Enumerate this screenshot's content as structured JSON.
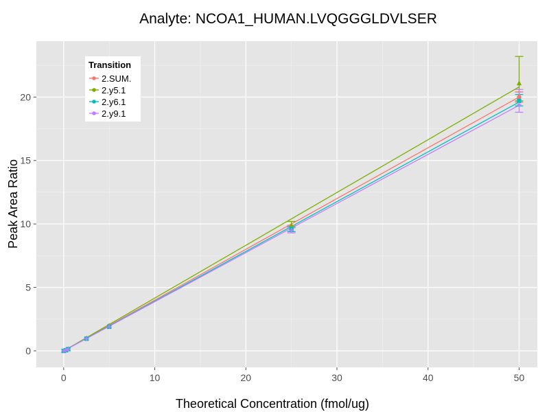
{
  "chart_data": {
    "type": "line",
    "title": "Analyte: NCOA1_HUMAN.LVQGGGLDVLSER",
    "xlabel": "Theoretical Concentration (fmol/ug)",
    "ylabel": "Peak Area Ratio",
    "xlim": [
      -3,
      52
    ],
    "ylim": [
      -1.3,
      24.4
    ],
    "xticks": [
      0,
      10,
      20,
      30,
      40,
      50
    ],
    "yticks": [
      0,
      5,
      10,
      15,
      20
    ],
    "grid": true,
    "legend": {
      "title": "Transition",
      "position": "top-left-inside"
    },
    "x": [
      0,
      0.25,
      0.5,
      2.5,
      5,
      25,
      50
    ],
    "series": [
      {
        "name": "2.SUM.",
        "color": "#F8766D",
        "marker": "circle",
        "values": [
          0.0,
          0.06,
          0.15,
          0.98,
          1.98,
          9.65,
          20.0
        ],
        "err_low": [
          0.0,
          0.0,
          0.0,
          0.0,
          0.0,
          9.4,
          19.6
        ],
        "err_high": [
          0.0,
          0.0,
          0.0,
          0.0,
          0.0,
          9.9,
          20.4
        ],
        "fit": [
          0.0,
          20.0
        ]
      },
      {
        "name": "2.y5.1",
        "color": "#7CAE00",
        "marker": "triangle",
        "values": [
          0.0,
          0.06,
          0.15,
          1.0,
          1.98,
          9.9,
          21.1
        ],
        "err_low": [
          0.0,
          0.0,
          0.0,
          0.0,
          0.0,
          9.7,
          19.7
        ],
        "err_high": [
          0.0,
          0.0,
          0.0,
          0.0,
          0.0,
          10.2,
          23.2
        ],
        "fit": [
          0.0,
          20.8
        ]
      },
      {
        "name": "2.y6.1",
        "color": "#00BFC4",
        "marker": "square",
        "values": [
          0.0,
          0.05,
          0.14,
          0.96,
          1.9,
          9.6,
          19.7
        ],
        "err_low": [
          0.0,
          0.0,
          0.0,
          0.0,
          0.0,
          9.4,
          19.3
        ],
        "err_high": [
          0.0,
          0.0,
          0.0,
          0.0,
          0.0,
          9.8,
          20.2
        ],
        "fit": [
          0.0,
          19.6
        ]
      },
      {
        "name": "2.y9.1",
        "color": "#C77CFF",
        "marker": "cross",
        "values": [
          0.0,
          0.05,
          0.14,
          0.95,
          1.9,
          9.5,
          19.4
        ],
        "err_low": [
          0.0,
          0.0,
          0.0,
          0.0,
          0.0,
          9.3,
          18.8
        ],
        "err_high": [
          0.0,
          0.0,
          0.0,
          0.0,
          0.0,
          9.7,
          20.6
        ],
        "fit": [
          0.0,
          19.35
        ]
      }
    ]
  }
}
